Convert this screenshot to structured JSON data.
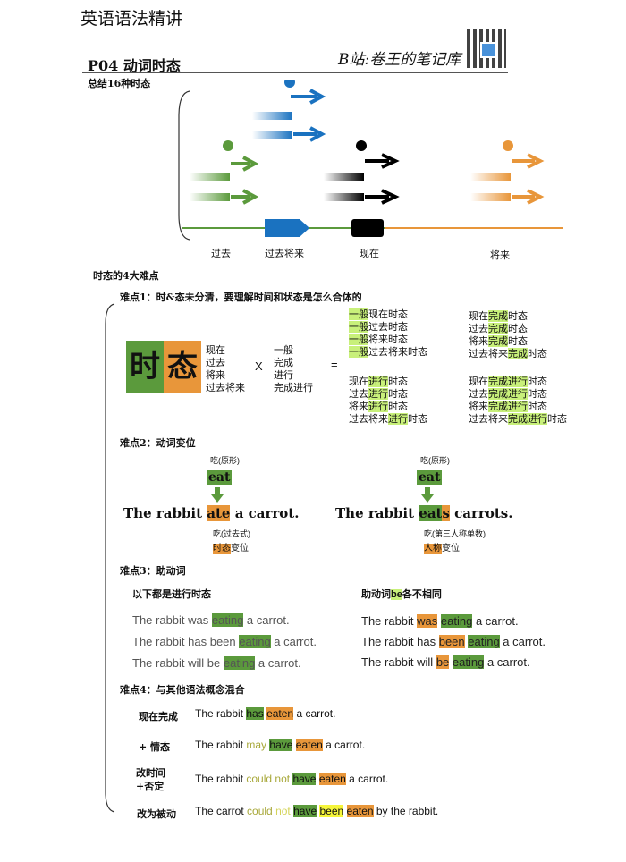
{
  "header": {
    "book_title": "英语语法精讲",
    "lesson": "P04  动词时态",
    "channel": "B站:卷王的笔记库",
    "summary": "总结16种时态"
  },
  "timeline": {
    "labels": [
      "过去",
      "过去将来",
      "现在",
      "将来"
    ]
  },
  "difficulties": {
    "title": "时态的4大难点",
    "d1": {
      "title": "难点1：时&态未分清，要理解时间和状态是怎么合体的",
      "big_char_1": "时",
      "big_char_2": "态",
      "times": [
        "现在",
        "过去",
        "将来",
        "过去将来"
      ],
      "times_op": "X",
      "aspects": [
        "一般",
        "完成",
        "进行",
        "完成进行"
      ],
      "equals": "=",
      "simple": [
        {
          "hl": "一般",
          "rest": "现在时态"
        },
        {
          "hl": "一般",
          "rest": "过去时态"
        },
        {
          "hl": "一般",
          "rest": "将来时态"
        },
        {
          "hl": "一般",
          "rest": "过去将来时态"
        }
      ],
      "perfect": [
        {
          "pre": "现在",
          "hl": "完成",
          "post": "时态"
        },
        {
          "pre": "过去",
          "hl": "完成",
          "post": "时态"
        },
        {
          "pre": "将来",
          "hl": "完成",
          "post": "时态"
        },
        {
          "pre": "过去将来",
          "hl": "完成",
          "post": "时态"
        }
      ],
      "progressive": [
        {
          "pre": "现在",
          "hl": "进行",
          "post": "时态"
        },
        {
          "pre": "过去",
          "hl": "进行",
          "post": "时态"
        },
        {
          "pre": "将来",
          "hl": "进行",
          "post": "时态"
        },
        {
          "pre": "过去将来",
          "hl": "进行",
          "post": "时态"
        }
      ],
      "perf_prog": [
        {
          "pre": "现在",
          "hl": "完成进行",
          "post": "时态"
        },
        {
          "pre": "过去",
          "hl": "完成进行",
          "post": "时态"
        },
        {
          "pre": "将来",
          "hl": "完成进行",
          "post": "时态"
        },
        {
          "pre": "过去将来",
          "hl": "完成进行",
          "post": "时态"
        }
      ]
    },
    "d2": {
      "title": "难点2：动词变位",
      "left": {
        "note_top": "吃(原形)",
        "word": "eat",
        "s_pre": "The rabbit ",
        "s_hl": "ate",
        "s_post": " a carrot.",
        "note_mid": "吃(过去式)",
        "tag_hl": "时态",
        "tag_rest": "变位"
      },
      "right": {
        "note_top": "吃(原形)",
        "word": "eat",
        "s_pre": "The rabbit ",
        "s_hl1": "eat",
        "s_hl2": "s",
        "s_post": " carrots.",
        "note_mid": "吃(第三人称单数)",
        "tag_hl": "人称",
        "tag_rest": "变位"
      }
    },
    "d3": {
      "title": "难点3：助动词",
      "left_title": "以下都是进行时态",
      "right_title_pre": "助动词",
      "right_title_hl": "be",
      "right_title_post": "各不相同",
      "left_rows": [
        {
          "pre": "The rabbit was ",
          "hl": "eating",
          "post": " a carrot."
        },
        {
          "pre": "The rabbit has been ",
          "hl": "eating",
          "post": " a carrot."
        },
        {
          "pre": "The rabbit will be ",
          "hl": "eating",
          "post": " a carrot."
        }
      ],
      "right_rows": [
        {
          "pre": "The rabbit ",
          "aux": "was",
          "mid": " ",
          "hl": "eating",
          "post": " a carrot."
        },
        {
          "pre": "The rabbit has ",
          "aux": "been",
          "mid": " ",
          "hl": "eating",
          "post": " a carrot."
        },
        {
          "pre": "The rabbit will ",
          "aux": "be",
          "mid": " ",
          "hl": "eating",
          "post": " a carrot."
        }
      ]
    },
    "d4": {
      "title": "难点4：与其他语法概念混合",
      "r1": {
        "label": "现在完成",
        "pre": "The rabbit ",
        "a": "has",
        "b": "eaten",
        "post": " a carrot."
      },
      "r2": {
        "label": "+ 情态",
        "pre": "The rabbit  ",
        "modal": "may",
        "a": "have",
        "b": "eaten",
        "post": " a carrot."
      },
      "r3": {
        "label1": "改时间",
        "label2": "+否定",
        "pre": "The rabbit  ",
        "modal": "could",
        "neg": "not",
        "a": "have",
        "b": "eaten",
        "post": " a carrot."
      },
      "r4": {
        "label": "改为被动",
        "pre": "The carrot ",
        "modal": "could",
        "neg": "not",
        "a": "have",
        "c": "been",
        "b": "eaten",
        "post": " by the rabbit."
      }
    }
  },
  "colors": {
    "green": "#5b9a3c",
    "orange": "#e8963a",
    "blue": "#1a72c0",
    "yellow": "#f5f53a",
    "lightgreen": "#c8f07a"
  }
}
